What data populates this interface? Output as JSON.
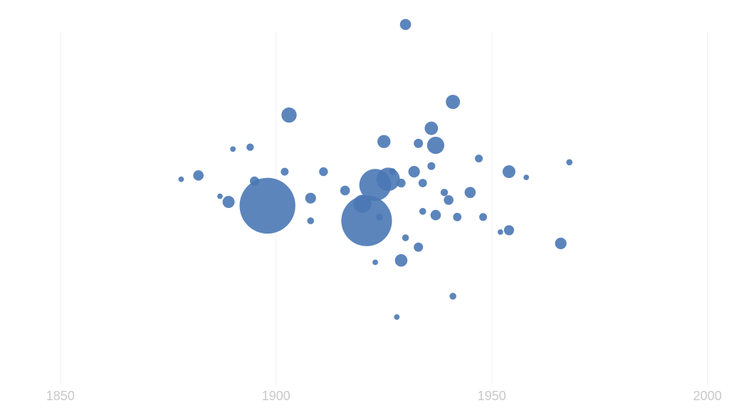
{
  "chart_data": {
    "type": "scatter",
    "title": "",
    "xlabel": "",
    "ylabel": "",
    "xlim": [
      1836,
      2005
    ],
    "ylim": [
      -1,
      1
    ],
    "x_ticks": [
      1850,
      1900,
      1950,
      2000
    ],
    "x_tick_labels": [
      "1850",
      "1900",
      "1950",
      "2000"
    ],
    "grid": true,
    "point_color": "#4a78b5",
    "series": [
      {
        "points": [
          {
            "x": 1898,
            "y": -0.09,
            "size": 4000
          },
          {
            "x": 1921,
            "y": -0.17,
            "size": 3300
          },
          {
            "x": 1923,
            "y": 0.02,
            "size": 1300
          },
          {
            "x": 1926,
            "y": 0.05,
            "size": 700
          },
          {
            "x": 1920,
            "y": -0.08,
            "size": 420
          },
          {
            "x": 1937,
            "y": 0.23,
            "size": 380
          },
          {
            "x": 1903,
            "y": 0.39,
            "size": 300
          },
          {
            "x": 1941,
            "y": 0.46,
            "size": 260
          },
          {
            "x": 1936,
            "y": 0.32,
            "size": 230
          },
          {
            "x": 1925,
            "y": 0.25,
            "size": 220
          },
          {
            "x": 1954,
            "y": 0.09,
            "size": 210
          },
          {
            "x": 1929,
            "y": -0.38,
            "size": 200
          },
          {
            "x": 1930,
            "y": 0.87,
            "size": 160
          },
          {
            "x": 1889,
            "y": -0.07,
            "size": 190
          },
          {
            "x": 1932,
            "y": 0.09,
            "size": 170
          },
          {
            "x": 1945,
            "y": -0.02,
            "size": 160
          },
          {
            "x": 1966,
            "y": -0.29,
            "size": 170
          },
          {
            "x": 1954,
            "y": -0.22,
            "size": 130
          },
          {
            "x": 1933,
            "y": -0.31,
            "size": 110
          },
          {
            "x": 1908,
            "y": -0.05,
            "size": 150
          },
          {
            "x": 1882,
            "y": 0.07,
            "size": 140
          },
          {
            "x": 1937,
            "y": -0.14,
            "size": 140
          },
          {
            "x": 1940,
            "y": -0.06,
            "size": 120
          },
          {
            "x": 1916,
            "y": -0.01,
            "size": 120
          },
          {
            "x": 1933,
            "y": 0.24,
            "size": 110
          },
          {
            "x": 1895,
            "y": 0.04,
            "size": 110
          },
          {
            "x": 1911,
            "y": 0.09,
            "size": 100
          },
          {
            "x": 1929,
            "y": 0.03,
            "size": 100
          },
          {
            "x": 1942,
            "y": -0.15,
            "size": 90
          },
          {
            "x": 1948,
            "y": -0.15,
            "size": 80
          },
          {
            "x": 1902,
            "y": 0.09,
            "size": 80
          },
          {
            "x": 1934,
            "y": 0.03,
            "size": 90
          },
          {
            "x": 1936,
            "y": 0.12,
            "size": 80
          },
          {
            "x": 1947,
            "y": 0.16,
            "size": 80
          },
          {
            "x": 1894,
            "y": 0.22,
            "size": 70
          },
          {
            "x": 1941,
            "y": -0.57,
            "size": 60
          },
          {
            "x": 1930,
            "y": -0.26,
            "size": 60
          },
          {
            "x": 1939,
            "y": -0.02,
            "size": 70
          },
          {
            "x": 1908,
            "y": -0.17,
            "size": 60
          },
          {
            "x": 1934,
            "y": -0.12,
            "size": 60
          },
          {
            "x": 1924,
            "y": -0.15,
            "size": 60
          },
          {
            "x": 1927,
            "y": 0.09,
            "size": 60
          },
          {
            "x": 1968,
            "y": 0.14,
            "size": 50
          },
          {
            "x": 1928,
            "y": -0.68,
            "size": 40
          },
          {
            "x": 1923,
            "y": -0.39,
            "size": 40
          },
          {
            "x": 1878,
            "y": 0.05,
            "size": 40
          },
          {
            "x": 1890,
            "y": 0.21,
            "size": 40
          },
          {
            "x": 1958,
            "y": 0.06,
            "size": 40
          },
          {
            "x": 1887,
            "y": -0.04,
            "size": 40
          },
          {
            "x": 1952,
            "y": -0.23,
            "size": 40
          }
        ]
      }
    ]
  }
}
